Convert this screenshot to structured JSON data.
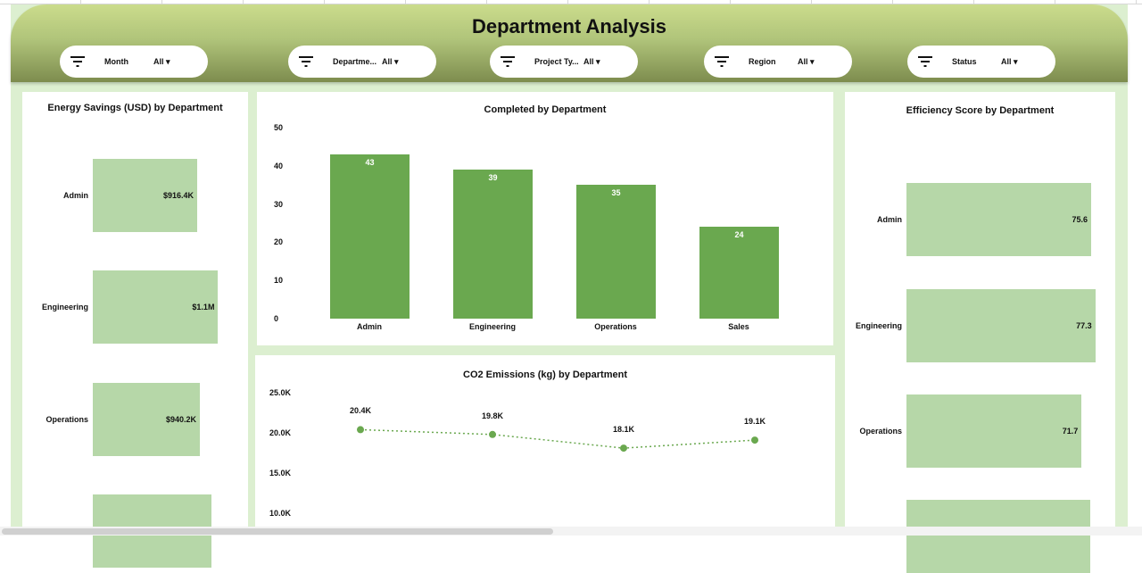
{
  "header": {
    "title": "Department Analysis"
  },
  "slicers": [
    {
      "label": "Month",
      "value": "All"
    },
    {
      "label": "Departme...",
      "value": "All"
    },
    {
      "label": "Project Ty...",
      "value": "All"
    },
    {
      "label": "Region",
      "value": "All"
    },
    {
      "label": "Status",
      "value": "All"
    }
  ],
  "colors": {
    "bar_dark": "#6aa84f",
    "bar_light": "#b6d7a8",
    "background": "#dcefd0"
  },
  "chart_data": [
    {
      "type": "bar",
      "orientation": "horizontal",
      "title": "Energy Savings (USD) by Department",
      "categories": [
        "Admin",
        "Engineering",
        "Operations",
        ""
      ],
      "values": [
        916400,
        1100000,
        940200,
        1040000
      ],
      "data_labels": [
        "$916.4K",
        "$1.1M",
        "$940.2K",
        ""
      ]
    },
    {
      "type": "bar",
      "title": "Completed by Department",
      "categories": [
        "Admin",
        "Engineering",
        "Operations",
        "Sales"
      ],
      "values": [
        43,
        39,
        35,
        24
      ],
      "ylim": [
        0,
        50
      ],
      "yticks": [
        "0",
        "10",
        "20",
        "30",
        "40",
        "50"
      ]
    },
    {
      "type": "line",
      "title": "CO2 Emissions (kg) by Department",
      "values": [
        20400,
        19800,
        18100,
        19100
      ],
      "data_labels": [
        "20.4K",
        "19.8K",
        "18.1K",
        "19.1K"
      ],
      "yticks": [
        "25.0K",
        "20.0K",
        "15.0K",
        "10.0K"
      ],
      "ylim": [
        10000,
        25000
      ]
    },
    {
      "type": "bar",
      "orientation": "horizontal",
      "title": "Efficiency Score by Department",
      "categories": [
        "Admin",
        "Engineering",
        "Operations",
        ""
      ],
      "values": [
        75.6,
        77.3,
        71.7,
        75.2
      ],
      "data_labels": [
        "75.6",
        "77.3",
        "71.7",
        ""
      ]
    }
  ]
}
